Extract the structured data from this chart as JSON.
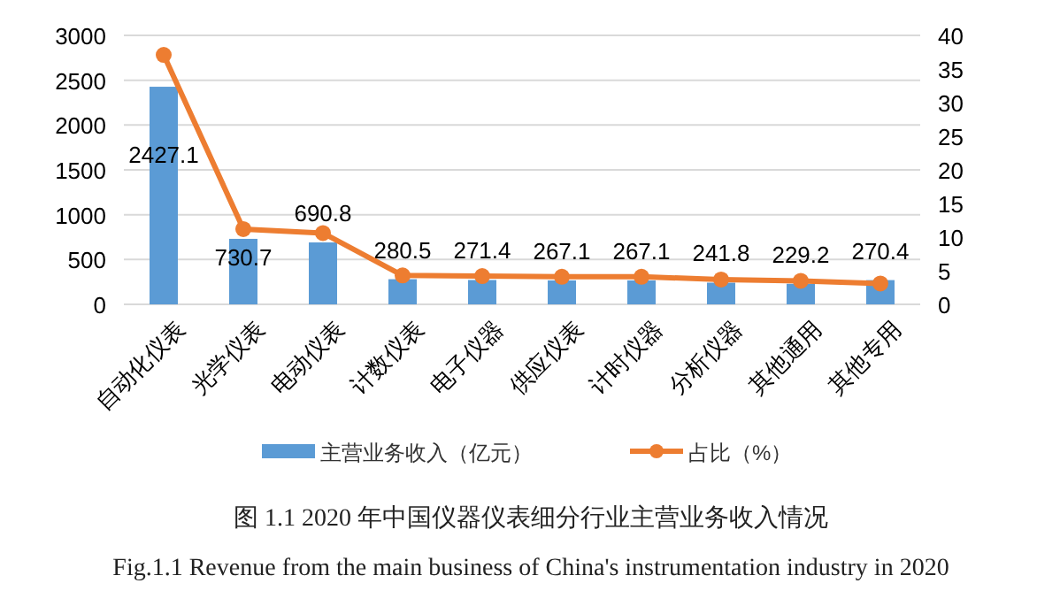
{
  "chart_data": {
    "type": "bar",
    "title": "图 1.1 2020 年中国仪器仪表细分行业主营业务收入情况",
    "subtitle": "Fig.1.1 Revenue from the main business of China's instrumentation industry in 2020",
    "categories": [
      "自动化仪表",
      "光学仪表",
      "电动仪表",
      "计数仪表",
      "电子仪器",
      "供应仪表",
      "计时仪器",
      "分析仪器",
      "其他通用",
      "其他专用"
    ],
    "series": [
      {
        "name": "主营业务收入（亿元）",
        "color": "#5b9bd5",
        "values": [
          2427.1,
          730.7,
          690.8,
          280.5,
          271.4,
          267.1,
          267.1,
          241.8,
          229.2,
          270.4
        ],
        "value_labels": [
          "2427.1",
          "730.7",
          "690.8",
          "280.5",
          "271.4",
          "267.1",
          "267.1",
          "241.8",
          "229.2",
          "270.4"
        ]
      },
      {
        "name": "占比（%）",
        "type": "line",
        "axis": "y2",
        "color": "#ed7d31",
        "marker": "circle",
        "values": [
          37.1,
          11.2,
          10.6,
          4.3,
          4.2,
          4.1,
          4.1,
          3.7,
          3.5,
          3.1
        ]
      }
    ],
    "ylim": [
      0,
      3000
    ],
    "yticks": [
      0,
      500,
      1000,
      1500,
      2000,
      2500,
      3000
    ],
    "y2lim": [
      0,
      40
    ],
    "y2ticks": [
      0,
      5,
      10,
      15,
      20,
      25,
      30,
      35,
      40
    ],
    "grid": "y",
    "legend": "bottom"
  }
}
